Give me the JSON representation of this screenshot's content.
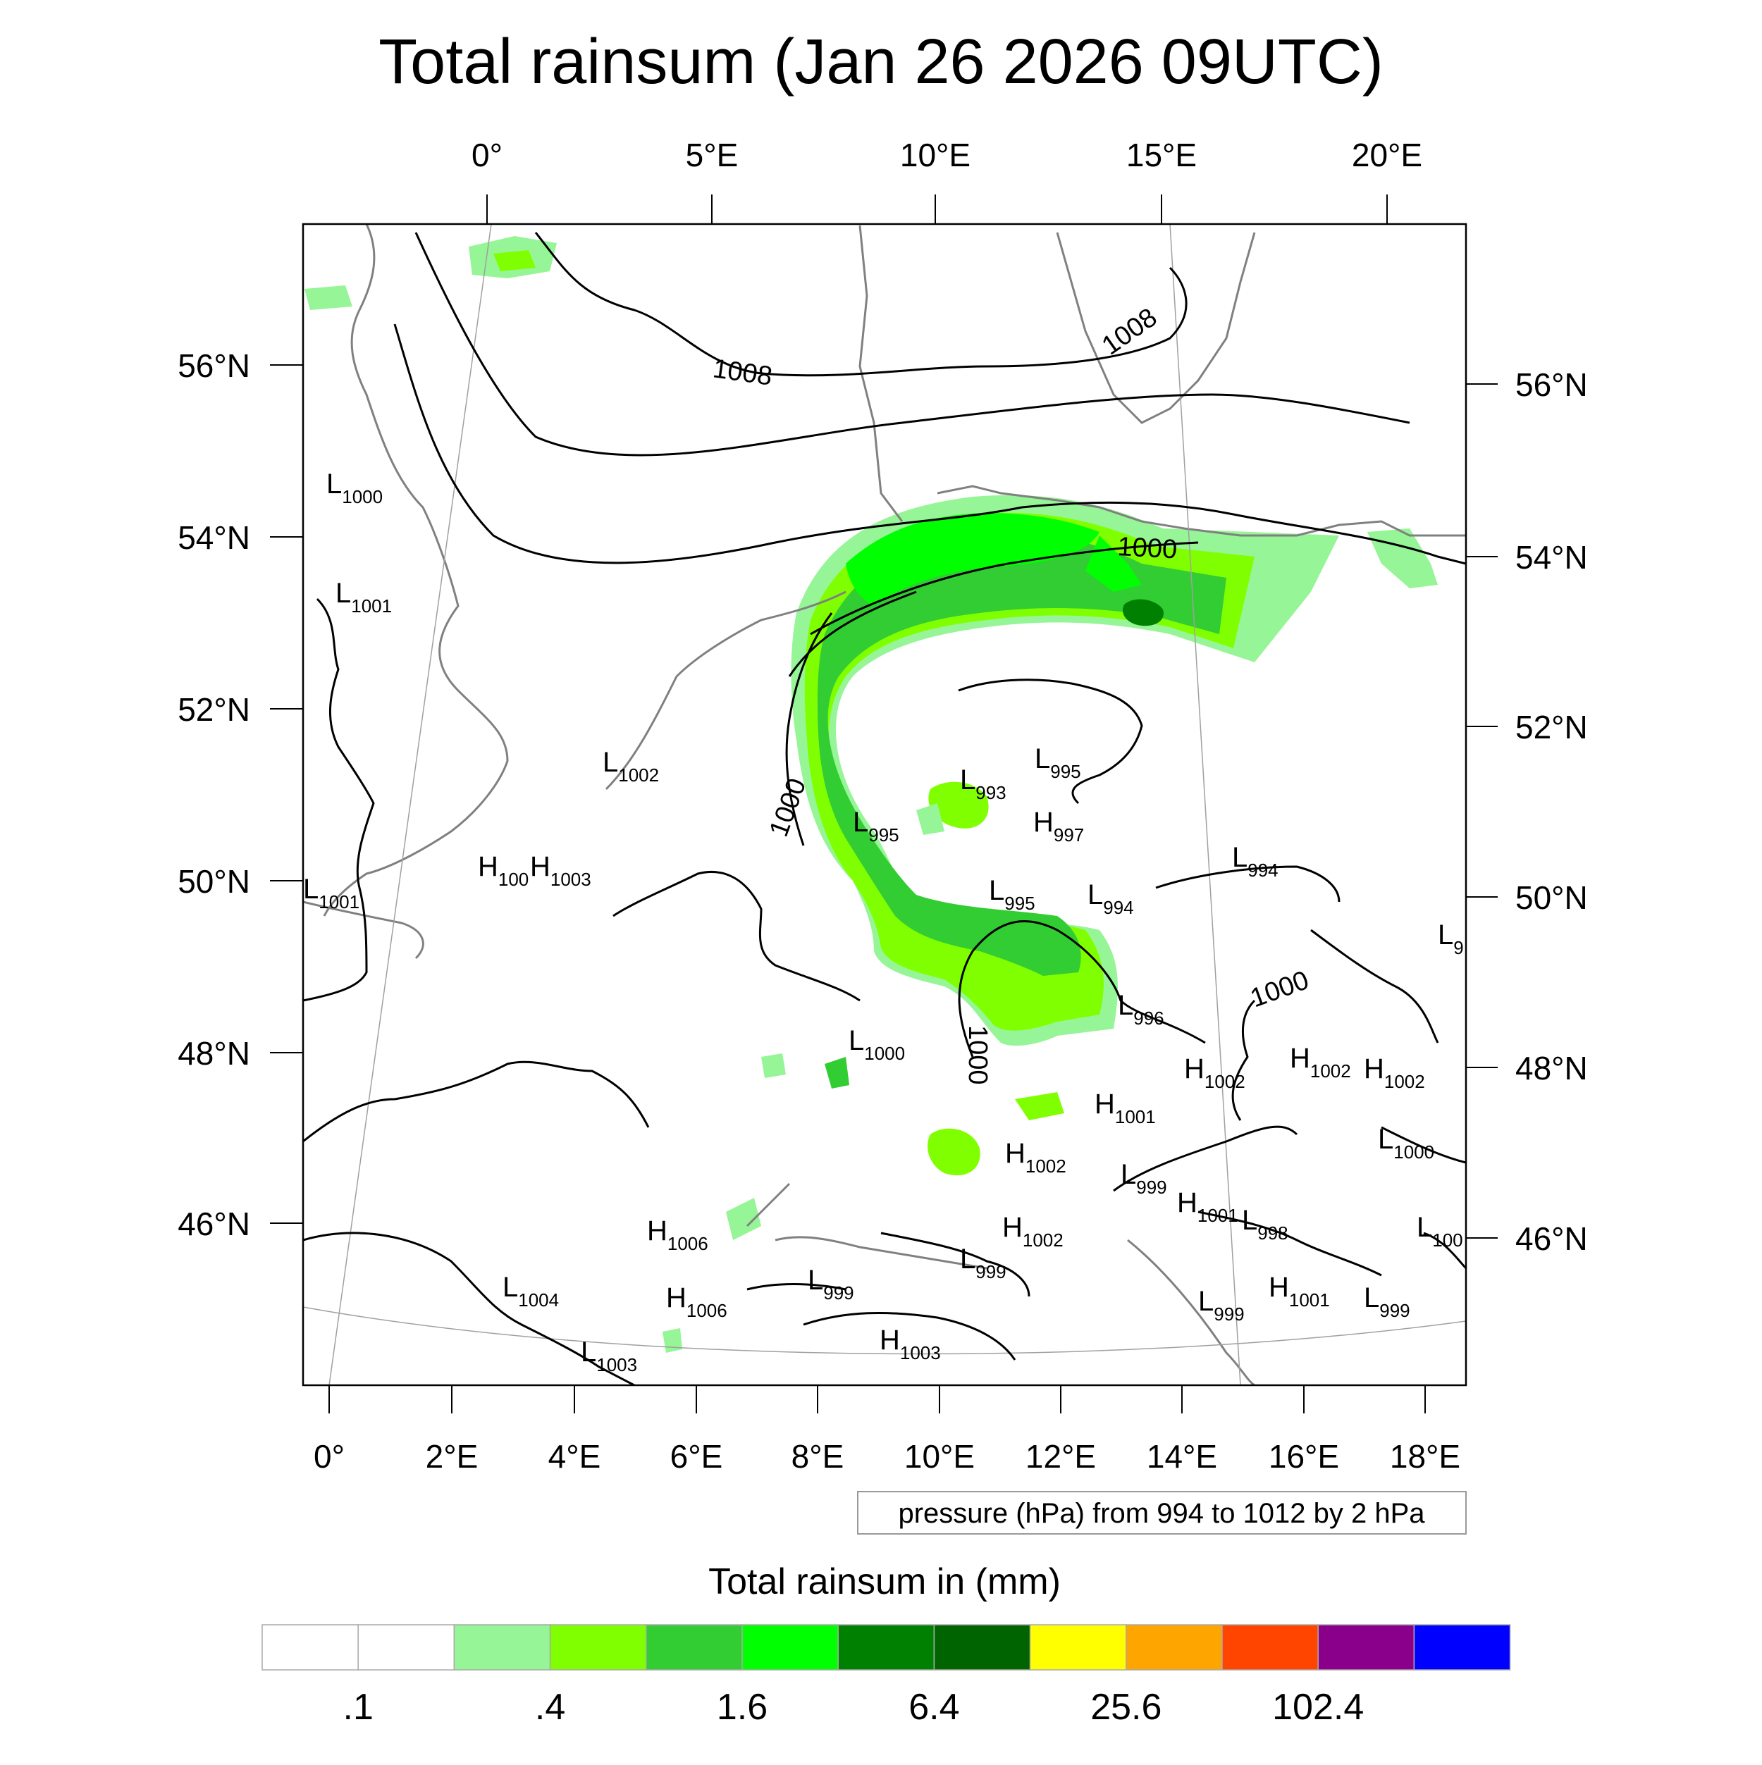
{
  "title": "Total rainsum (Jan 26 2026 09UTC)",
  "top_lon_labels": [
    "0°",
    "5°E",
    "10°E",
    "15°E",
    "20°E"
  ],
  "bottom_lon_labels": [
    "0°",
    "2°E",
    "4°E",
    "6°E",
    "8°E",
    "10°E",
    "12°E",
    "14°E",
    "16°E",
    "18°E"
  ],
  "left_lat_labels": [
    "56°N",
    "54°N",
    "52°N",
    "50°N",
    "48°N",
    "46°N"
  ],
  "right_lat_labels": [
    "56°N",
    "54°N",
    "52°N",
    "50°N",
    "48°N",
    "46°N"
  ],
  "contour_info": "pressure (hPa) from 994 to 1012 by 2 hPa",
  "colorbar": {
    "title": "Total rainsum in (mm)",
    "colors": [
      "#ffffff",
      "#ffffff",
      "#96f596",
      "#80ff00",
      "#32cd32",
      "#00ff00",
      "#008000",
      "#006400",
      "#ffff00",
      "#ffa500",
      "#ff4500",
      "#8b008b",
      "#0000ff"
    ],
    "labels": [
      ".1",
      ".4",
      "1.6",
      "6.4",
      "25.6",
      "102.4"
    ]
  },
  "isobar_labels": [
    "1008",
    "1008",
    "1000",
    "1000",
    "1000",
    "1000"
  ],
  "pressure_centers": [
    {
      "t": "L",
      "v": "1000"
    },
    {
      "t": "L",
      "v": "1001"
    },
    {
      "t": "L",
      "v": "1001"
    },
    {
      "t": "L",
      "v": "1002"
    },
    {
      "t": "H",
      "v": "100"
    },
    {
      "t": "H",
      "v": "1003"
    },
    {
      "t": "L",
      "v": "995"
    },
    {
      "t": "L",
      "v": "993"
    },
    {
      "t": "H",
      "v": "997"
    },
    {
      "t": "L",
      "v": "995"
    },
    {
      "t": "L",
      "v": "995"
    },
    {
      "t": "L",
      "v": "994"
    },
    {
      "t": "L",
      "v": "994"
    },
    {
      "t": "L",
      "v": "996"
    },
    {
      "t": "L",
      "v": "9"
    },
    {
      "t": "L",
      "v": "1000"
    },
    {
      "t": "H",
      "v": "1002"
    },
    {
      "t": "H",
      "v": "1002"
    },
    {
      "t": "H",
      "v": "1002"
    },
    {
      "t": "H",
      "v": "1001"
    },
    {
      "t": "L",
      "v": "1000"
    },
    {
      "t": "H",
      "v": "1002"
    },
    {
      "t": "L",
      "v": "999"
    },
    {
      "t": "H",
      "v": "1001"
    },
    {
      "t": "L",
      "v": "998"
    },
    {
      "t": "H",
      "v": "1006"
    },
    {
      "t": "H",
      "v": "1002"
    },
    {
      "t": "L",
      "v": "100"
    },
    {
      "t": "L",
      "v": "1004"
    },
    {
      "t": "H",
      "v": "1006"
    },
    {
      "t": "L",
      "v": "999"
    },
    {
      "t": "L",
      "v": "999"
    },
    {
      "t": "H",
      "v": "1001"
    },
    {
      "t": "L",
      "v": "999"
    },
    {
      "t": "L",
      "v": "999"
    },
    {
      "t": "L",
      "v": "1003"
    },
    {
      "t": "H",
      "v": "1003"
    }
  ]
}
